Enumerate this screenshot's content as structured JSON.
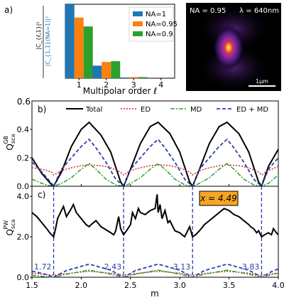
{
  "chart_data": [
    {
      "panel": "a",
      "type": "bar",
      "panel_label": "a)",
      "xlabel": "Multipolar order ℓ",
      "ylabel_num": "|C_{ℓ,1}|²",
      "ylabel_den": "|C_{1,1}(NA=1)|²",
      "categories": [
        "1",
        "2",
        "3",
        "4"
      ],
      "ylim": [
        0,
        1
      ],
      "series": [
        {
          "name": "NA=1",
          "color": "#1f77b4",
          "values": [
            1.0,
            0.17,
            0.01,
            0.0
          ]
        },
        {
          "name": "NA=0.95",
          "color": "#ff7f0e",
          "values": [
            0.82,
            0.22,
            0.015,
            0.0
          ]
        },
        {
          "name": "NA=0.9",
          "color": "#2ca02c",
          "values": [
            0.7,
            0.23,
            0.015,
            0.0
          ]
        }
      ],
      "legend": "top-right"
    },
    {
      "panel": "inset",
      "type": "heatmap",
      "label_na": "NA = 0.95",
      "label_lambda": "λ = 640nm",
      "scalebar": "1μm"
    },
    {
      "panel": "b",
      "type": "line",
      "panel_label": "b)",
      "ylabel_main": "Q",
      "ylabel_sub": "sca",
      "ylabel_sup": "GB",
      "xlim": [
        1.5,
        4.0
      ],
      "ylim": [
        0,
        0.6
      ],
      "yticks": [
        "0.0",
        "0.2",
        "0.4",
        "0.6"
      ],
      "legend": "top",
      "series": [
        {
          "name": "Total",
          "color": "#000000",
          "x": [
            1.5,
            1.6,
            1.7,
            1.72,
            1.8,
            1.9,
            2.0,
            2.08,
            2.2,
            2.3,
            2.4,
            2.43,
            2.5,
            2.6,
            2.7,
            2.78,
            2.9,
            3.0,
            3.1,
            3.13,
            3.2,
            3.3,
            3.4,
            3.48,
            3.6,
            3.7,
            3.8,
            3.83,
            3.9,
            4.0
          ],
          "y": [
            0.2,
            0.09,
            0.01,
            0.0,
            0.1,
            0.28,
            0.4,
            0.45,
            0.36,
            0.24,
            0.03,
            0.0,
            0.12,
            0.3,
            0.42,
            0.45,
            0.37,
            0.24,
            0.03,
            0.0,
            0.12,
            0.3,
            0.42,
            0.45,
            0.37,
            0.24,
            0.03,
            0.0,
            0.14,
            0.26
          ]
        },
        {
          "name": "ED",
          "color": "#d62728",
          "x": [
            1.5,
            1.6,
            1.7,
            1.72,
            1.8,
            1.9,
            2.0,
            2.08,
            2.2,
            2.3,
            2.4,
            2.43,
            2.5,
            2.6,
            2.7,
            2.78,
            2.9,
            3.0,
            3.1,
            3.13,
            3.2,
            3.3,
            3.4,
            3.48,
            3.6,
            3.7,
            3.8,
            3.83,
            3.9,
            4.0
          ],
          "y": [
            0.13,
            0.12,
            0.1,
            0.08,
            0.11,
            0.13,
            0.145,
            0.15,
            0.145,
            0.13,
            0.1,
            0.08,
            0.11,
            0.13,
            0.145,
            0.15,
            0.145,
            0.13,
            0.1,
            0.08,
            0.11,
            0.13,
            0.145,
            0.15,
            0.145,
            0.13,
            0.1,
            0.08,
            0.11,
            0.14
          ]
        },
        {
          "name": "MD",
          "color": "#2ca02c",
          "x": [
            1.5,
            1.6,
            1.7,
            1.72,
            1.8,
            1.9,
            2.0,
            2.08,
            2.15,
            2.25,
            2.35,
            2.43,
            2.5,
            2.6,
            2.7,
            2.78,
            2.85,
            2.95,
            3.05,
            3.13,
            3.2,
            3.3,
            3.4,
            3.48,
            3.55,
            3.65,
            3.75,
            3.83,
            3.9,
            4.0
          ],
          "y": [
            0.05,
            0.02,
            0.0,
            0.0,
            0.02,
            0.06,
            0.12,
            0.16,
            0.12,
            0.05,
            0.01,
            0.0,
            0.02,
            0.06,
            0.12,
            0.16,
            0.12,
            0.05,
            0.01,
            0.0,
            0.02,
            0.06,
            0.12,
            0.16,
            0.12,
            0.05,
            0.01,
            0.0,
            0.02,
            0.08
          ]
        },
        {
          "name": "ED + MD",
          "color": "#2b3fa8",
          "x": [
            1.5,
            1.6,
            1.7,
            1.72,
            1.8,
            1.9,
            2.0,
            2.08,
            2.15,
            2.25,
            2.35,
            2.43,
            2.5,
            2.6,
            2.7,
            2.78,
            2.85,
            2.95,
            3.05,
            3.13,
            3.2,
            3.3,
            3.4,
            3.48,
            3.55,
            3.65,
            3.75,
            3.83,
            3.9,
            4.0
          ],
          "y": [
            0.17,
            0.1,
            0.02,
            0.0,
            0.12,
            0.2,
            0.28,
            0.33,
            0.27,
            0.17,
            0.05,
            0.0,
            0.12,
            0.2,
            0.28,
            0.33,
            0.27,
            0.17,
            0.05,
            0.0,
            0.12,
            0.2,
            0.28,
            0.33,
            0.27,
            0.17,
            0.05,
            0.0,
            0.12,
            0.2
          ]
        }
      ]
    },
    {
      "panel": "c",
      "type": "line",
      "panel_label": "c)",
      "xlabel": "m",
      "ylabel_main": "Q",
      "ylabel_sub": "sca",
      "ylabel_sup": "PW",
      "xlim": [
        1.5,
        4.0
      ],
      "ylim": [
        0,
        4.5
      ],
      "xticks": [
        "1.5",
        "2.0",
        "2.5",
        "3.0",
        "3.5",
        "4.0"
      ],
      "yticks": [
        "0.0",
        "2.0",
        "4.0"
      ],
      "annotation": "x = 4.49",
      "vlines": [
        {
          "x": 1.72,
          "label": "1.72"
        },
        {
          "x": 2.43,
          "label": "2.43"
        },
        {
          "x": 3.13,
          "label": "3.13"
        },
        {
          "x": 3.83,
          "label": "3.83"
        }
      ],
      "series": [
        {
          "name": "Total",
          "color": "#000000",
          "x": [
            1.5,
            1.55,
            1.6,
            1.65,
            1.68,
            1.7,
            1.72,
            1.74,
            1.76,
            1.8,
            1.82,
            1.85,
            1.9,
            1.92,
            1.95,
            2.0,
            2.05,
            2.08,
            2.1,
            2.15,
            2.2,
            2.3,
            2.33,
            2.35,
            2.38,
            2.4,
            2.43,
            2.46,
            2.5,
            2.52,
            2.55,
            2.58,
            2.6,
            2.65,
            2.7,
            2.75,
            2.77,
            2.78,
            2.8,
            2.82,
            2.85,
            2.88,
            2.9,
            2.95,
            3.0,
            3.05,
            3.1,
            3.13,
            3.16,
            3.2,
            3.25,
            3.3,
            3.35,
            3.4,
            3.45,
            3.5,
            3.55,
            3.6,
            3.65,
            3.7,
            3.72,
            3.75,
            3.78,
            3.8,
            3.83,
            3.86,
            3.9,
            3.93,
            3.95,
            3.98,
            4.0
          ],
          "y": [
            3.2,
            3.0,
            2.7,
            2.4,
            2.2,
            2.1,
            2.0,
            2.4,
            2.9,
            3.3,
            3.5,
            3.0,
            3.4,
            3.6,
            3.2,
            2.9,
            2.6,
            2.5,
            2.6,
            2.8,
            2.5,
            2.2,
            2.1,
            2.3,
            3.0,
            2.4,
            2.1,
            2.3,
            2.6,
            3.2,
            2.9,
            3.4,
            3.2,
            3.1,
            3.3,
            3.4,
            4.1,
            3.2,
            3.6,
            2.9,
            3.3,
            2.7,
            2.8,
            2.3,
            2.2,
            2.0,
            2.5,
            2.0,
            2.1,
            2.3,
            2.6,
            2.8,
            3.0,
            3.2,
            3.4,
            3.3,
            3.1,
            3.0,
            2.8,
            2.6,
            2.5,
            2.4,
            2.2,
            2.3,
            2.0,
            2.1,
            2.2,
            2.1,
            2.4,
            2.2,
            2.1
          ]
        },
        {
          "name": "ED",
          "color": "#d62728",
          "x": [
            1.5,
            1.6,
            1.72,
            1.85,
            2.08,
            2.3,
            2.43,
            2.55,
            2.78,
            3.0,
            3.13,
            3.25,
            3.48,
            3.7,
            3.83,
            3.95,
            4.0
          ],
          "y": [
            0.2,
            0.15,
            0.1,
            0.18,
            0.3,
            0.2,
            0.1,
            0.18,
            0.3,
            0.2,
            0.1,
            0.18,
            0.3,
            0.2,
            0.1,
            0.18,
            0.2
          ]
        },
        {
          "name": "MD",
          "color": "#2ca02c",
          "x": [
            1.5,
            1.6,
            1.72,
            1.85,
            2.08,
            2.3,
            2.43,
            2.55,
            2.78,
            3.0,
            3.13,
            3.25,
            3.48,
            3.7,
            3.83,
            3.95,
            4.0
          ],
          "y": [
            0.1,
            0.05,
            0.0,
            0.15,
            0.35,
            0.15,
            0.0,
            0.15,
            0.35,
            0.15,
            0.0,
            0.15,
            0.35,
            0.15,
            0.0,
            0.15,
            0.2
          ]
        },
        {
          "name": "ED + MD",
          "color": "#2b3fa8",
          "x": [
            1.5,
            1.6,
            1.72,
            1.85,
            2.08,
            2.3,
            2.43,
            2.55,
            2.78,
            3.0,
            3.13,
            3.25,
            3.48,
            3.7,
            3.83,
            3.95,
            4.0
          ],
          "y": [
            0.3,
            0.2,
            0.0,
            0.33,
            0.65,
            0.35,
            0.0,
            0.33,
            0.65,
            0.35,
            0.0,
            0.33,
            0.65,
            0.35,
            0.0,
            0.33,
            0.4
          ]
        }
      ]
    }
  ]
}
